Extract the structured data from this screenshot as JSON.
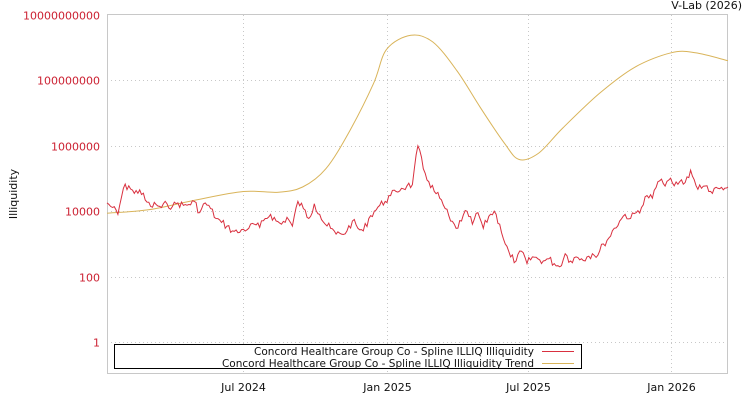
{
  "chart": {
    "credit": "V-Lab (2026)",
    "ylabel": "Illiquidity",
    "legend": [
      {
        "label": "Concord Healthcare Group Co - Spline ILLIQ Illiquidity",
        "color": "#d9303f"
      },
      {
        "label": "Concord Healthcare Group Co - Spline ILLIQ Illiquidity Trend",
        "color": "#d9b45a"
      }
    ]
  },
  "chart_data": {
    "type": "line",
    "title": "",
    "xlabel": "",
    "ylabel": "Illiquidity",
    "yscale": "log",
    "ylim": [
      0.1,
      10000000000
    ],
    "yticks": [
      1,
      100,
      10000,
      1000000,
      100000000,
      10000000000
    ],
    "ytick_labels": [
      "1",
      "100",
      "10000",
      "1000000",
      "100000000",
      "10000000000"
    ],
    "xlim": [
      "2024-01-08",
      "2026-03-15"
    ],
    "xticks": [
      "2024-07-01",
      "2025-01-01",
      "2025-07-01",
      "2026-01-01"
    ],
    "xtick_labels": [
      "Jul 2024",
      "Jan 2025",
      "Jul 2025",
      "Jan 2026"
    ],
    "grid": true,
    "legend_position": "lower center (inside plot)",
    "credit": "V-Lab (2026)",
    "series": [
      {
        "name": "Concord Healthcare Group Co - Spline ILLIQ Illiquidity",
        "color": "#d9303f",
        "x": [
          "2024-01-08",
          "2024-01-15",
          "2024-01-22",
          "2024-01-29",
          "2024-02-05",
          "2024-02-12",
          "2024-02-19",
          "2024-02-26",
          "2024-03-04",
          "2024-03-11",
          "2024-03-18",
          "2024-03-25",
          "2024-04-01",
          "2024-04-08",
          "2024-04-15",
          "2024-04-22",
          "2024-04-29",
          "2024-05-06",
          "2024-05-13",
          "2024-05-20",
          "2024-05-27",
          "2024-06-03",
          "2024-06-10",
          "2024-06-17",
          "2024-06-24",
          "2024-07-01",
          "2024-07-08",
          "2024-07-15",
          "2024-07-22",
          "2024-07-29",
          "2024-08-05",
          "2024-08-12",
          "2024-08-19",
          "2024-08-26",
          "2024-09-02",
          "2024-09-09",
          "2024-09-16",
          "2024-09-23",
          "2024-09-30",
          "2024-10-07",
          "2024-10-14",
          "2024-10-21",
          "2024-10-28",
          "2024-11-04",
          "2024-11-11",
          "2024-11-18",
          "2024-11-25",
          "2024-12-02",
          "2024-12-09",
          "2024-12-16",
          "2024-12-23",
          "2024-12-30",
          "2025-01-06",
          "2025-01-13",
          "2025-01-20",
          "2025-01-27",
          "2025-02-03",
          "2025-02-10",
          "2025-02-17",
          "2025-02-24",
          "2025-03-03",
          "2025-03-10",
          "2025-03-17",
          "2025-03-24",
          "2025-03-31",
          "2025-04-07",
          "2025-04-14",
          "2025-04-21",
          "2025-04-28",
          "2025-05-05",
          "2025-05-12",
          "2025-05-19",
          "2025-05-26",
          "2025-06-02",
          "2025-06-09",
          "2025-06-16",
          "2025-06-23",
          "2025-06-30",
          "2025-07-07",
          "2025-07-14",
          "2025-07-21",
          "2025-07-28",
          "2025-08-04",
          "2025-08-11",
          "2025-08-18",
          "2025-08-25",
          "2025-09-01",
          "2025-09-08",
          "2025-09-15",
          "2025-09-22",
          "2025-09-29",
          "2025-10-06",
          "2025-10-13",
          "2025-10-20",
          "2025-10-27",
          "2025-11-03",
          "2025-11-10",
          "2025-11-17",
          "2025-11-24",
          "2025-12-01",
          "2025-12-08",
          "2025-12-15",
          "2025-12-22",
          "2025-12-29",
          "2026-01-05",
          "2026-01-12",
          "2026-01-19",
          "2026-01-26",
          "2026-02-02",
          "2026-02-09",
          "2026-02-16",
          "2026-02-23",
          "2026-03-02",
          "2026-03-09",
          "2026-03-15"
        ],
        "values": [
          18000,
          13000,
          8000,
          50000,
          60000,
          35000,
          45000,
          22000,
          14000,
          16000,
          13000,
          17000,
          14000,
          18000,
          15000,
          16000,
          20000,
          9000,
          18000,
          12000,
          6000,
          4500,
          3500,
          2500,
          2200,
          2800,
          3000,
          4000,
          3200,
          6000,
          8000,
          5000,
          4000,
          6500,
          3500,
          20000,
          12000,
          6000,
          17000,
          8000,
          4000,
          3000,
          2000,
          2000,
          2500,
          5000,
          3000,
          2500,
          6000,
          10000,
          15000,
          20000,
          30000,
          40000,
          50000,
          60000,
          65000,
          1000000,
          200000,
          80000,
          40000,
          25000,
          12000,
          5000,
          3000,
          5000,
          10000,
          4000,
          9000,
          3000,
          7000,
          10000,
          4000,
          1000,
          400,
          300,
          600,
          250,
          400,
          350,
          300,
          350,
          250,
          200,
          500,
          300,
          400,
          350,
          400,
          500,
          450,
          1000,
          1500,
          3000,
          5000,
          8000,
          6000,
          9000,
          13000,
          30000,
          25000,
          80000,
          70000,
          90000,
          60000,
          80000,
          75000,
          180000,
          60000,
          50000,
          60000,
          35000,
          50000,
          45000,
          55000
        ]
      },
      {
        "name": "Concord Healthcare Group Co - Spline ILLIQ Illiquidity Trend",
        "color": "#d9b45a",
        "x": [
          "2024-01-08",
          "2024-03-01",
          "2024-05-01",
          "2024-07-01",
          "2024-08-15",
          "2024-09-15",
          "2024-10-15",
          "2024-11-15",
          "2024-12-15",
          "2025-01-01",
          "2025-02-01",
          "2025-03-01",
          "2025-04-01",
          "2025-05-01",
          "2025-06-01",
          "2025-06-20",
          "2025-07-15",
          "2025-08-15",
          "2025-10-01",
          "2025-11-15",
          "2026-01-01",
          "2026-02-01",
          "2026-03-15"
        ],
        "values": [
          8700,
          11000,
          22000,
          40000,
          38000,
          55000,
          200000,
          3000000,
          80000000,
          900000000,
          2400000000,
          1500000000,
          200000000,
          15000000,
          1200000,
          380000,
          600000,
          3500000,
          40000000,
          250000000,
          700000000,
          700000000,
          400000000
        ]
      }
    ]
  }
}
